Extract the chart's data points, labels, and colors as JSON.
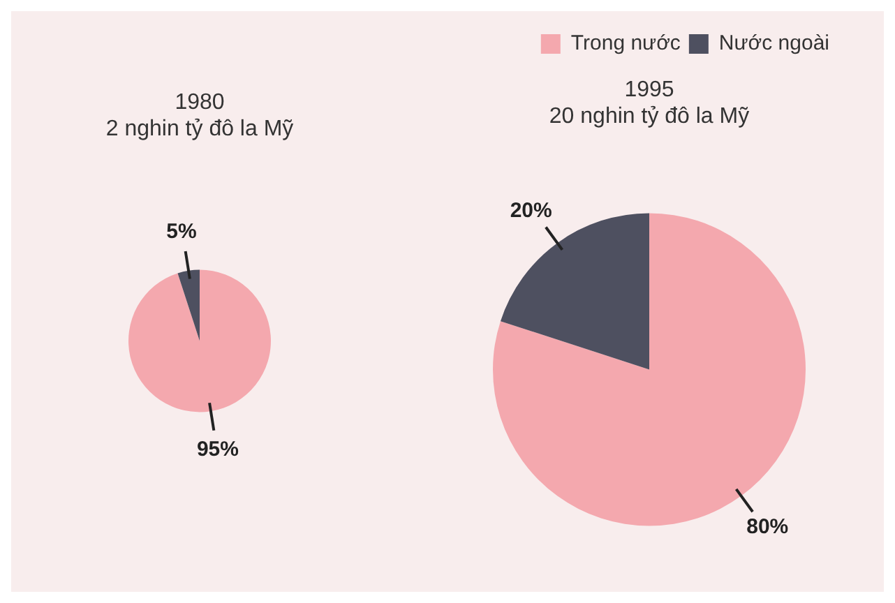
{
  "chart_data": [
    {
      "type": "pie",
      "title": "1980\n2 nghin tỷ đô la Mỹ",
      "categories": [
        null,
        null
      ],
      "values": [
        95,
        5
      ],
      "value_labels": [
        "95%",
        "5%"
      ],
      "colors": [
        "#f4a8ae",
        "#4e5060"
      ],
      "legend": false
    },
    {
      "type": "pie",
      "title": "1995\n20 nghin tỷ đô la Mỹ",
      "categories": [
        "Trong nước",
        "Nước ngoài"
      ],
      "values": [
        80,
        20
      ],
      "value_labels": [
        "80%",
        "20%"
      ],
      "colors": [
        "#f4a8ae",
        "#4e5060"
      ],
      "legend": "top right"
    }
  ]
}
